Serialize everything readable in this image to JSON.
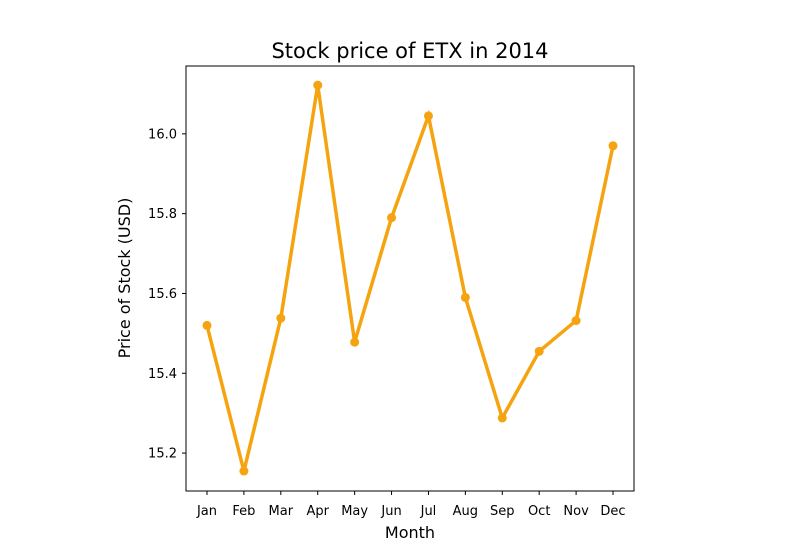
{
  "chart_data": {
    "type": "line",
    "title": "Stock price of ETX in 2014",
    "xlabel": "Month",
    "ylabel": "Price of Stock (USD)",
    "categories": [
      "Jan",
      "Feb",
      "Mar",
      "Apr",
      "May",
      "Jun",
      "Jul",
      "Aug",
      "Sep",
      "Oct",
      "Nov",
      "Dec"
    ],
    "series": [
      {
        "values": [
          15.52,
          15.155,
          15.538,
          16.122,
          15.478,
          15.79,
          16.045,
          15.59,
          15.288,
          15.455,
          15.532,
          15.97
        ],
        "color": "#f5a30f"
      }
    ],
    "ylim": [
      15.105,
      16.17
    ],
    "yticks": [
      15.2,
      15.4,
      15.6,
      15.8,
      16.0
    ],
    "ytick_labels": [
      "15.2",
      "15.4",
      "15.6",
      "15.8",
      "16.0"
    ],
    "grid": false,
    "legend": "none"
  }
}
